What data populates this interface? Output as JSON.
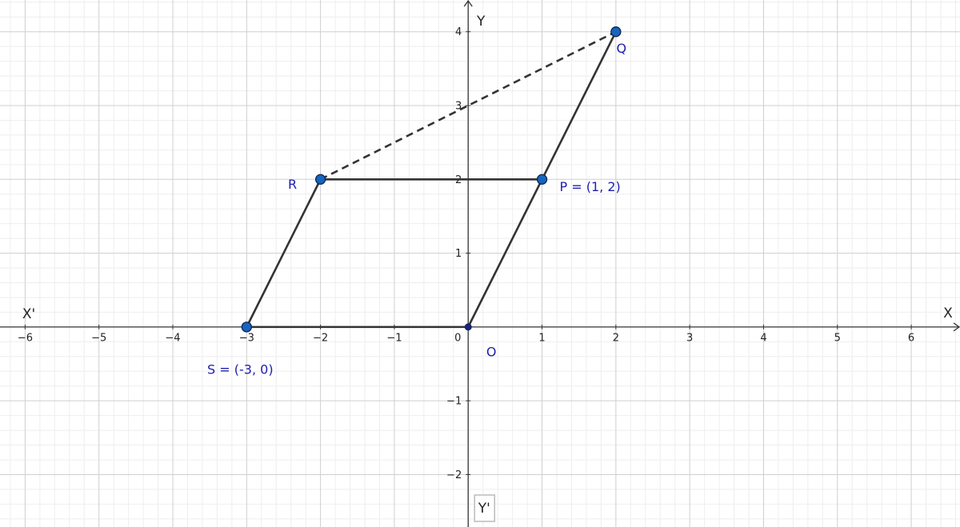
{
  "chart_data": {
    "type": "geometry",
    "x_axis_label": "X",
    "x_axis_neg_label": "X'",
    "y_axis_label": "Y",
    "y_axis_neg_label": "Y'",
    "xlim": [
      -6.34,
      6.66
    ],
    "ylim": [
      -2.71,
      4.43
    ],
    "xticks": [
      {
        "value": -6,
        "label": "−6"
      },
      {
        "value": -5,
        "label": "−5"
      },
      {
        "value": -4,
        "label": "−4"
      },
      {
        "value": -3,
        "label": "−3"
      },
      {
        "value": -2,
        "label": "−2"
      },
      {
        "value": -1,
        "label": "−1"
      },
      0,
      1,
      2,
      3,
      4,
      5,
      6
    ],
    "yticks": [
      {
        "value": -2,
        "label": "−2"
      },
      {
        "value": -1,
        "label": "−1"
      },
      1,
      2,
      3,
      4
    ],
    "grid": true,
    "minor_divisions": 5,
    "points": [
      {
        "name": "S = (-3, 0)",
        "x": -3,
        "y": 0,
        "color": "#1565c0"
      },
      {
        "name": "O",
        "x": 0,
        "y": 0,
        "color": "#1a237e"
      },
      {
        "name": "P = (1, 2)",
        "x": 1,
        "y": 2,
        "color": "#1565c0"
      },
      {
        "name": "Q",
        "x": 2,
        "y": 4,
        "color": "#1565c0"
      },
      {
        "name": "R",
        "x": -2,
        "y": 2,
        "color": "#1565c0"
      }
    ],
    "segments": [
      {
        "from": 0,
        "to": 1,
        "style": "solid"
      },
      {
        "from": 1,
        "to": 2,
        "style": "solid"
      },
      {
        "from": 2,
        "to": 3,
        "style": "solid"
      },
      {
        "from": 2,
        "to": 4,
        "style": "solid"
      },
      {
        "from": 4,
        "to": 0,
        "style": "solid"
      },
      {
        "from": 4,
        "to": 3,
        "style": "dashed"
      }
    ]
  }
}
